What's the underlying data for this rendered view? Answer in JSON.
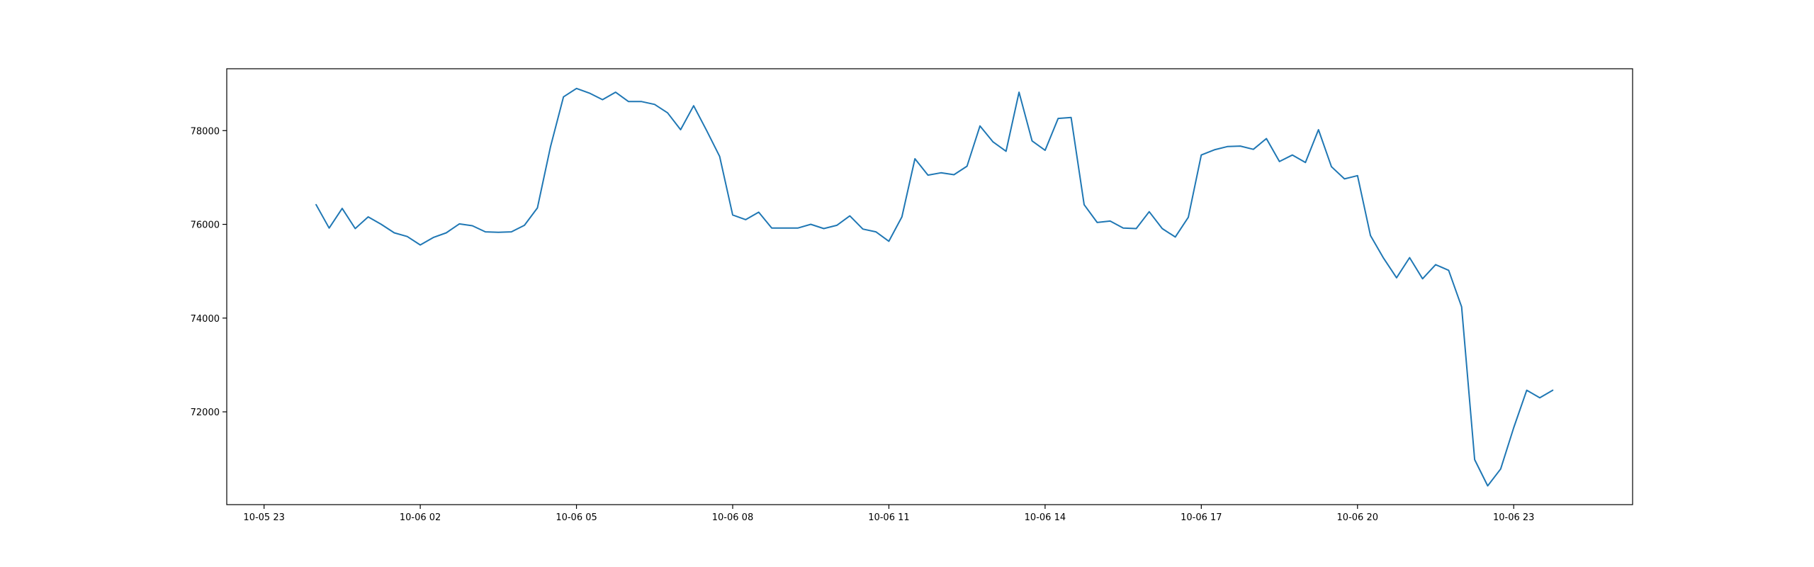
{
  "chart_data": {
    "type": "line",
    "title": "",
    "xlabel": "",
    "ylabel": "",
    "grid": false,
    "line_color": "#1f77b4",
    "x_axis": {
      "unit": "datetime",
      "range": [
        "2023-10-05 22:17",
        "2023-10-07 01:17"
      ],
      "ticks": [
        {
          "value": "2023-10-05 23:00",
          "label": "10-05 23"
        },
        {
          "value": "2023-10-06 02:00",
          "label": "10-06 02"
        },
        {
          "value": "2023-10-06 05:00",
          "label": "10-06 05"
        },
        {
          "value": "2023-10-06 08:00",
          "label": "10-06 08"
        },
        {
          "value": "2023-10-06 11:00",
          "label": "10-06 11"
        },
        {
          "value": "2023-10-06 14:00",
          "label": "10-06 14"
        },
        {
          "value": "2023-10-06 17:00",
          "label": "10-06 17"
        },
        {
          "value": "2023-10-06 20:00",
          "label": "10-06 20"
        },
        {
          "value": "2023-10-06 23:00",
          "label": "10-06 23"
        }
      ]
    },
    "y_axis": {
      "range": [
        70020,
        79320
      ],
      "ticks": [
        {
          "value": 72000,
          "label": "72000"
        },
        {
          "value": 74000,
          "label": "74000"
        },
        {
          "value": 76000,
          "label": "76000"
        },
        {
          "value": 78000,
          "label": "78000"
        }
      ]
    },
    "series": [
      {
        "points": [
          [
            "2023-10-06 00:00",
            76420
          ],
          [
            "2023-10-06 00:15",
            75920
          ],
          [
            "2023-10-06 00:30",
            76340
          ],
          [
            "2023-10-06 00:45",
            75910
          ],
          [
            "2023-10-06 01:00",
            76160
          ],
          [
            "2023-10-06 01:15",
            76000
          ],
          [
            "2023-10-06 01:30",
            75820
          ],
          [
            "2023-10-06 01:45",
            75740
          ],
          [
            "2023-10-06 02:00",
            75560
          ],
          [
            "2023-10-06 02:15",
            75720
          ],
          [
            "2023-10-06 02:30",
            75820
          ],
          [
            "2023-10-06 02:45",
            76010
          ],
          [
            "2023-10-06 03:00",
            75970
          ],
          [
            "2023-10-06 03:15",
            75840
          ],
          [
            "2023-10-06 03:30",
            75830
          ],
          [
            "2023-10-06 03:45",
            75840
          ],
          [
            "2023-10-06 04:00",
            75980
          ],
          [
            "2023-10-06 04:15",
            76350
          ],
          [
            "2023-10-06 04:30",
            77650
          ],
          [
            "2023-10-06 04:45",
            78720
          ],
          [
            "2023-10-06 05:00",
            78900
          ],
          [
            "2023-10-06 05:15",
            78800
          ],
          [
            "2023-10-06 05:30",
            78660
          ],
          [
            "2023-10-06 05:45",
            78820
          ],
          [
            "2023-10-06 06:00",
            78620
          ],
          [
            "2023-10-06 06:15",
            78620
          ],
          [
            "2023-10-06 06:30",
            78560
          ],
          [
            "2023-10-06 06:45",
            78380
          ],
          [
            "2023-10-06 07:00",
            78020
          ],
          [
            "2023-10-06 07:15",
            78530
          ],
          [
            "2023-10-06 07:30",
            78000
          ],
          [
            "2023-10-06 07:45",
            77450
          ],
          [
            "2023-10-06 08:00",
            76200
          ],
          [
            "2023-10-06 08:15",
            76100
          ],
          [
            "2023-10-06 08:30",
            76260
          ],
          [
            "2023-10-06 08:45",
            75920
          ],
          [
            "2023-10-06 09:00",
            75920
          ],
          [
            "2023-10-06 09:15",
            75920
          ],
          [
            "2023-10-06 09:30",
            76000
          ],
          [
            "2023-10-06 09:45",
            75910
          ],
          [
            "2023-10-06 10:00",
            75980
          ],
          [
            "2023-10-06 10:15",
            76180
          ],
          [
            "2023-10-06 10:30",
            75900
          ],
          [
            "2023-10-06 10:45",
            75840
          ],
          [
            "2023-10-06 11:00",
            75640
          ],
          [
            "2023-10-06 11:15",
            76160
          ],
          [
            "2023-10-06 11:30",
            77400
          ],
          [
            "2023-10-06 11:45",
            77050
          ],
          [
            "2023-10-06 12:00",
            77100
          ],
          [
            "2023-10-06 12:15",
            77060
          ],
          [
            "2023-10-06 12:30",
            77240
          ],
          [
            "2023-10-06 12:45",
            78100
          ],
          [
            "2023-10-06 13:00",
            77760
          ],
          [
            "2023-10-06 13:15",
            77560
          ],
          [
            "2023-10-06 13:30",
            78820
          ],
          [
            "2023-10-06 13:45",
            77780
          ],
          [
            "2023-10-06 14:00",
            77580
          ],
          [
            "2023-10-06 14:15",
            78260
          ],
          [
            "2023-10-06 14:30",
            78280
          ],
          [
            "2023-10-06 14:45",
            76420
          ],
          [
            "2023-10-06 15:00",
            76040
          ],
          [
            "2023-10-06 15:15",
            76070
          ],
          [
            "2023-10-06 15:30",
            75920
          ],
          [
            "2023-10-06 15:45",
            75910
          ],
          [
            "2023-10-06 16:00",
            76270
          ],
          [
            "2023-10-06 16:15",
            75910
          ],
          [
            "2023-10-06 16:30",
            75730
          ],
          [
            "2023-10-06 16:45",
            76150
          ],
          [
            "2023-10-06 17:00",
            77480
          ],
          [
            "2023-10-06 17:15",
            77590
          ],
          [
            "2023-10-06 17:30",
            77660
          ],
          [
            "2023-10-06 17:45",
            77670
          ],
          [
            "2023-10-06 18:00",
            77600
          ],
          [
            "2023-10-06 18:15",
            77830
          ],
          [
            "2023-10-06 18:30",
            77340
          ],
          [
            "2023-10-06 18:45",
            77480
          ],
          [
            "2023-10-06 19:00",
            77320
          ],
          [
            "2023-10-06 19:15",
            78020
          ],
          [
            "2023-10-06 19:30",
            77230
          ],
          [
            "2023-10-06 19:45",
            76970
          ],
          [
            "2023-10-06 20:00",
            77040
          ],
          [
            "2023-10-06 20:15",
            75760
          ],
          [
            "2023-10-06 20:30",
            75280
          ],
          [
            "2023-10-06 20:45",
            74860
          ],
          [
            "2023-10-06 21:00",
            75290
          ],
          [
            "2023-10-06 21:15",
            74840
          ],
          [
            "2023-10-06 21:30",
            75140
          ],
          [
            "2023-10-06 21:45",
            75020
          ],
          [
            "2023-10-06 22:00",
            74240
          ],
          [
            "2023-10-06 22:15",
            70980
          ],
          [
            "2023-10-06 22:30",
            70420
          ],
          [
            "2023-10-06 22:45",
            70780
          ],
          [
            "2023-10-06 23:00",
            71660
          ],
          [
            "2023-10-06 23:15",
            72460
          ],
          [
            "2023-10-06 23:30",
            72300
          ],
          [
            "2023-10-06 23:45",
            72460
          ]
        ]
      }
    ]
  }
}
